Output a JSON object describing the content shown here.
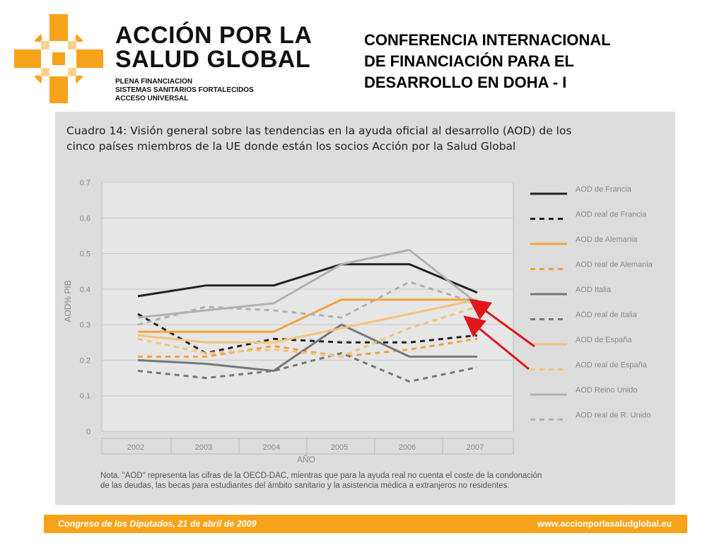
{
  "brand": {
    "name_line1": "ACCIÓN POR LA",
    "name_line2": "SALUD GLOBAL",
    "taglines": [
      "PLENA FINANCIACION",
      "SISTEMAS SANITARIOS FORTALECIDOS",
      "ACCESO UNIVERSAL"
    ],
    "accent_color": "#f7a21b"
  },
  "slide_title": [
    "CONFERENCIA INTERNACIONAL",
    "DE FINANCIACIÓN PARA EL",
    "DESARROLLO EN DOHA - I"
  ],
  "figure": {
    "title_lines": [
      "Cuadro 14: Visión general sobre las tendencias en la ayuda oficial al desarrollo (AOD) de los",
      "cinco países miembros de la UE donde están los socios Acción por la Salud Global"
    ],
    "note_lines": [
      "Nota. \"AOD\" representa las cifras de la OECD-DAC, mientras que para la ayuda real no cuenta el coste de la condonación",
      "de las deudas, las becas para estudiantes del ámbito sanitario y la asistencia médica a extranjeros no residentes."
    ]
  },
  "chart_data": {
    "type": "line",
    "x": [
      "2002",
      "2003",
      "2004",
      "2005",
      "2006",
      "2007"
    ],
    "xlabel": "AÑO",
    "ylabel": "AOD% PIB",
    "ylim": [
      0,
      0.7
    ],
    "yticks": [
      "0",
      "0.1",
      "0.2",
      "0.3",
      "0.4",
      "0.5",
      "0.6",
      "0.7"
    ],
    "legend_position": "right",
    "grid": "horizontal",
    "series": [
      {
        "name": "AOD de Francia",
        "values": [
          0.38,
          0.41,
          0.41,
          0.47,
          0.47,
          0.39
        ],
        "color": "#222222",
        "dash": false
      },
      {
        "name": "AOD real de Francia",
        "values": [
          0.33,
          0.22,
          0.26,
          0.25,
          0.25,
          0.27
        ],
        "color": "#222222",
        "dash": true
      },
      {
        "name": "AOD de Alemania",
        "values": [
          0.28,
          0.28,
          0.28,
          0.37,
          0.37,
          0.37
        ],
        "color": "#f3a33b",
        "dash": false
      },
      {
        "name": "AOD real de Alemania",
        "values": [
          0.21,
          0.21,
          0.24,
          0.21,
          0.23,
          0.26
        ],
        "color": "#f3a33b",
        "dash": true
      },
      {
        "name": "AOD Italia",
        "values": [
          0.2,
          0.19,
          0.17,
          0.3,
          0.21,
          0.21
        ],
        "color": "#777777",
        "dash": false
      },
      {
        "name": "AOD real de Italia",
        "values": [
          0.17,
          0.15,
          0.17,
          0.22,
          0.14,
          0.18
        ],
        "color": "#777777",
        "dash": true
      },
      {
        "name": "AOD de España",
        "values": [
          0.27,
          0.25,
          0.25,
          0.29,
          0.33,
          0.37
        ],
        "color": "#f7c27a",
        "dash": false
      },
      {
        "name": "AOD real de España",
        "values": [
          0.26,
          0.22,
          0.23,
          0.21,
          0.29,
          0.35
        ],
        "color": "#f7c27a",
        "dash": true
      },
      {
        "name": "AOD Reino Unido",
        "values": [
          0.32,
          0.34,
          0.36,
          0.47,
          0.51,
          0.36
        ],
        "color": "#b0b0b0",
        "dash": false
      },
      {
        "name": "AOD real de R. Unido",
        "values": [
          0.3,
          0.35,
          0.34,
          0.32,
          0.42,
          0.36
        ],
        "color": "#b0b0b0",
        "dash": true
      }
    ]
  },
  "footer": {
    "left": "Congreso de los Diputados, 21 de abril de 2009",
    "right": "www.accionporlasaludglobal.eu"
  }
}
